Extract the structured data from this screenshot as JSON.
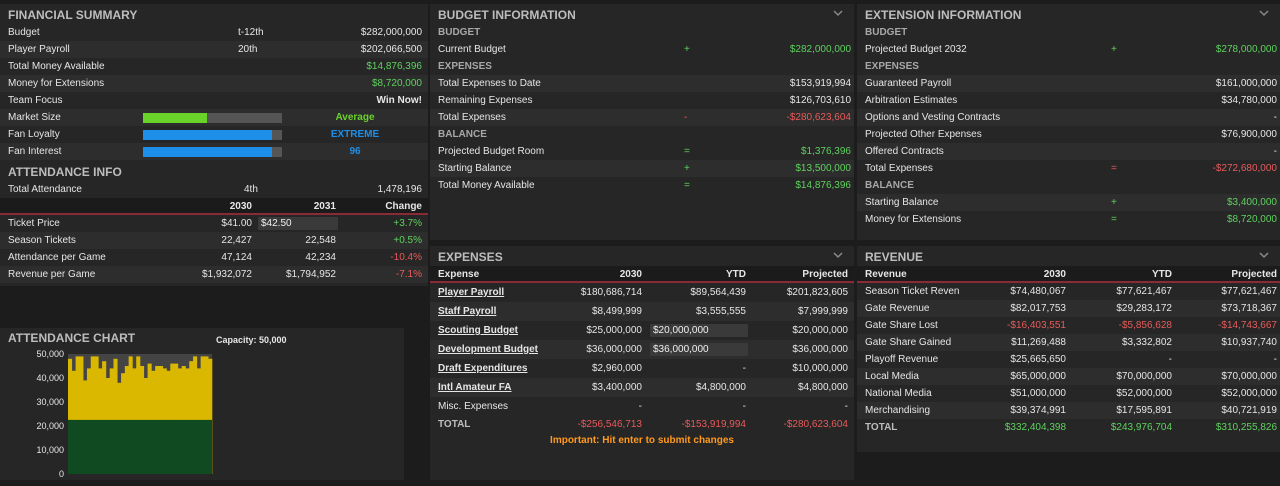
{
  "financial_summary": {
    "title": "FINANCIAL SUMMARY",
    "rows": [
      {
        "label": "Budget",
        "rank": "t-12th",
        "value": "$282,000,000"
      },
      {
        "label": "Player Payroll",
        "rank": "20th",
        "value": "$202,066,500"
      },
      {
        "label": "Total Money Available",
        "value": "$14,876,396"
      },
      {
        "label": "Money for Extensions",
        "value": "$8,720,000"
      },
      {
        "label": "Team Focus",
        "value": "Win Now!"
      }
    ],
    "bars": [
      {
        "label": "Market Size",
        "level": 0.46,
        "text": "Average",
        "color": "#6ad32a",
        "text_color": "#6ad32a"
      },
      {
        "label": "Fan Loyalty",
        "level": 0.93,
        "text": "EXTREME",
        "color": "#1e8fe8",
        "text_color": "#1e8fe8"
      },
      {
        "label": "Fan Interest",
        "level": 0.93,
        "text": "96",
        "color": "#1e8fe8",
        "text_color": "#1e8fe8"
      }
    ]
  },
  "attendance_info": {
    "title": "ATTENDANCE INFO",
    "total_label": "Total Attendance",
    "total_rank": "4th",
    "total_value": "1,478,196",
    "headers": [
      "2030",
      "2031",
      "Change"
    ],
    "rows": [
      {
        "label": "Ticket Price",
        "a": "$41.00",
        "b": "$42.50",
        "change": "+3.7%",
        "pos": true
      },
      {
        "label": "Season Tickets",
        "a": "22,427",
        "b": "22,548",
        "change": "+0.5%",
        "pos": true
      },
      {
        "label": "Attendance per Game",
        "a": "47,124",
        "b": "42,234",
        "change": "-10.4%",
        "pos": false
      },
      {
        "label": "Revenue per Game",
        "a": "$1,932,072",
        "b": "$1,794,952",
        "change": "-7.1%",
        "pos": false
      }
    ]
  },
  "attendance_chart": {
    "title": "ATTENDANCE CHART",
    "capacity_label": "Capacity: 50,000",
    "season_tickets": 22548,
    "chart_data": {
      "type": "bar",
      "ylim": [
        0,
        50000
      ],
      "yticks": [
        "50,000",
        "40,000",
        "30,000",
        "20,000",
        "10,000",
        "0"
      ],
      "series": [
        {
          "name": "",
          "values": [
            48000,
            43000,
            49000,
            49000,
            39000,
            44000,
            49000,
            49000,
            44000,
            47000,
            40000,
            44000,
            48000,
            38000,
            42000,
            45000,
            49000,
            44000,
            49000,
            45000,
            40000,
            46000,
            43000,
            45000,
            45000,
            44000,
            43000,
            46000,
            46000,
            44000,
            45000,
            44000,
            47000,
            49000,
            44000,
            49000,
            49000,
            48000
          ]
        }
      ]
    }
  },
  "budget_info": {
    "title": "BUDGET INFORMATION",
    "sections": [
      {
        "name": "BUDGET",
        "rows": [
          {
            "label": "Current Budget",
            "op": "+",
            "value": "$282,000,000",
            "color": "g"
          }
        ]
      },
      {
        "name": "EXPENSES",
        "rows": [
          {
            "label": "Total Expenses to Date",
            "op": "",
            "value": "$153,919,994",
            "color": ""
          },
          {
            "label": "Remaining Expenses",
            "op": "",
            "value": "$126,703,610",
            "color": ""
          },
          {
            "label": "Total Expenses",
            "op": "-",
            "value": "-$280,623,604",
            "color": "rd"
          }
        ]
      },
      {
        "name": "BALANCE",
        "rows": [
          {
            "label": "Projected Budget Room",
            "op": "=",
            "value": "$1,376,396",
            "color": "g"
          },
          {
            "label": "Starting Balance",
            "op": "+",
            "value": "$13,500,000",
            "color": "g"
          },
          {
            "label": "Total Money Available",
            "op": "=",
            "value": "$14,876,396",
            "color": "g"
          }
        ]
      }
    ]
  },
  "extension_info": {
    "title": "EXTENSION INFORMATION",
    "sections": [
      {
        "name": "BUDGET",
        "rows": [
          {
            "label": "Projected Budget 2032",
            "op": "+",
            "value": "$278,000,000",
            "color": "g"
          }
        ]
      },
      {
        "name": "EXPENSES",
        "rows": [
          {
            "label": "Guaranteed Payroll",
            "op": "",
            "value": "$161,000,000",
            "color": ""
          },
          {
            "label": "Arbitration Estimates",
            "op": "",
            "value": "$34,780,000",
            "color": ""
          },
          {
            "label": "Options and Vesting Contracts",
            "op": "",
            "value": "-",
            "color": ""
          },
          {
            "label": "Projected Other Expenses",
            "op": "",
            "value": "$76,900,000",
            "color": ""
          },
          {
            "label": "Offered Contracts",
            "op": "",
            "value": "-",
            "color": ""
          },
          {
            "label": "Total Expenses",
            "op": "=",
            "value": "-$272,680,000",
            "color": "rd"
          }
        ]
      },
      {
        "name": "BALANCE",
        "rows": [
          {
            "label": "Starting Balance",
            "op": "+",
            "value": "$3,400,000",
            "color": "g"
          },
          {
            "label": "Money for Extensions",
            "op": "=",
            "value": "$8,720,000",
            "color": "g"
          }
        ]
      }
    ]
  },
  "expenses": {
    "title": "EXPENSES",
    "headers": [
      "Expense",
      "2030",
      "YTD",
      "Projected"
    ],
    "rows": [
      {
        "label": "Player Payroll",
        "link": true,
        "a": "$180,686,714",
        "ytd": "$89,564,439",
        "proj": "$201,823,605",
        "input": false
      },
      {
        "label": "Staff Payroll",
        "link": true,
        "a": "$8,499,999",
        "ytd": "$3,555,555",
        "proj": "$7,999,999",
        "input": false
      },
      {
        "label": "Scouting Budget",
        "link": true,
        "a": "$25,000,000",
        "ytd": "$20,000,000",
        "proj": "$20,000,000",
        "input": true
      },
      {
        "label": "Development Budget",
        "link": true,
        "a": "$36,000,000",
        "ytd": "$36,000,000",
        "proj": "$36,000,000",
        "input": true
      },
      {
        "label": "Draft Expenditures",
        "link": true,
        "a": "$2,960,000",
        "ytd": "-",
        "proj": "$10,000,000",
        "input": false
      },
      {
        "label": "Intl Amateur FA",
        "link": true,
        "a": "$3,400,000",
        "ytd": "$4,800,000",
        "proj": "$4,800,000",
        "input": false
      },
      {
        "label": "Misc. Expenses",
        "link": false,
        "a": "-",
        "ytd": "-",
        "proj": "-",
        "input": false
      }
    ],
    "total": {
      "label": "TOTAL",
      "a": "-$256,546,713",
      "ytd": "-$153,919,994",
      "proj": "-$280,623,604"
    },
    "note": "Important: Hit enter to submit changes"
  },
  "revenue": {
    "title": "REVENUE",
    "headers": [
      "Revenue",
      "2030",
      "YTD",
      "Projected"
    ],
    "rows": [
      {
        "label": "Season Ticket Reven",
        "a": "$74,480,067",
        "ytd": "$77,621,467",
        "proj": "$77,621,467",
        "neg": false
      },
      {
        "label": "Gate Revenue",
        "a": "$82,017,753",
        "ytd": "$29,283,172",
        "proj": "$73,718,367",
        "neg": false
      },
      {
        "label": "Gate Share Lost",
        "a": "-$16,403,551",
        "ytd": "-$5,856,628",
        "proj": "-$14,743,667",
        "neg": true
      },
      {
        "label": "Gate Share Gained",
        "a": "$11,269,488",
        "ytd": "$3,332,802",
        "proj": "$10,937,740",
        "neg": false
      },
      {
        "label": "Playoff Revenue",
        "a": "$25,665,650",
        "ytd": "-",
        "proj": "-",
        "neg": false
      },
      {
        "label": "Local Media",
        "a": "$65,000,000",
        "ytd": "$70,000,000",
        "proj": "$70,000,000",
        "neg": false
      },
      {
        "label": "National Media",
        "a": "$51,000,000",
        "ytd": "$52,000,000",
        "proj": "$52,000,000",
        "neg": false
      },
      {
        "label": "Merchandising",
        "a": "$39,374,991",
        "ytd": "$17,595,891",
        "proj": "$40,721,919",
        "neg": false
      }
    ],
    "total": {
      "label": "TOTAL",
      "a": "$332,404,398",
      "ytd": "$243,976,704",
      "proj": "$310,255,826"
    }
  },
  "colors": {
    "header_rule": "#8a2a35",
    "positive": "#5ed25e",
    "negative": "#e85a5a",
    "chart_gold": "#dbb800",
    "chart_green": "#0f4a20",
    "chart_gap": "#444444"
  }
}
